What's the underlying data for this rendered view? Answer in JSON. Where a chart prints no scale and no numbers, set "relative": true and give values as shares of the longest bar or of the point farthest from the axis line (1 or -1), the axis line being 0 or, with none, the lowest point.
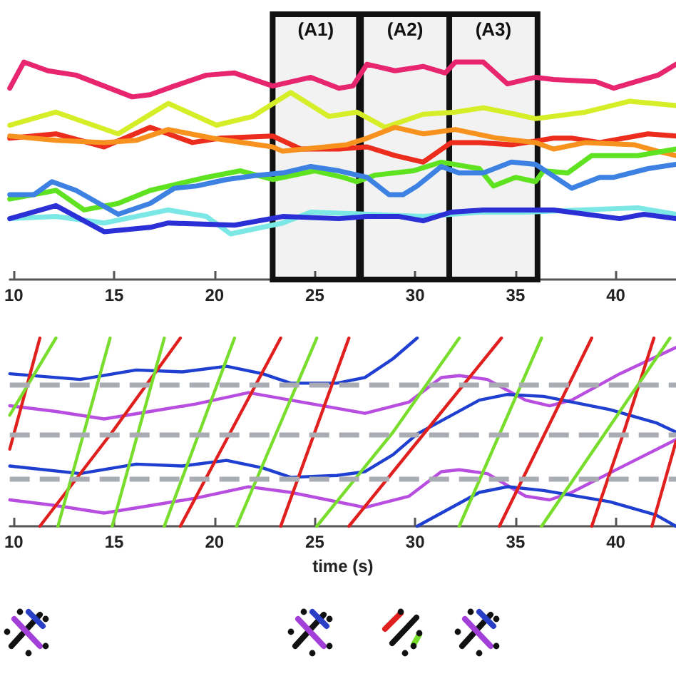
{
  "chart_data": [
    {
      "type": "line",
      "relative": true,
      "xlim": [
        9.8,
        43
      ],
      "xticks": [
        10,
        15,
        20,
        25,
        30,
        35,
        40
      ],
      "tick_labels": "x",
      "grid": false,
      "marker": "none",
      "line_style": "solid",
      "bands": [
        {
          "axis": "x",
          "from": 22.9,
          "to": 27.2,
          "label": "(A1)"
        },
        {
          "axis": "x",
          "from": 27.3,
          "to": 31.7,
          "label": "(A2)"
        },
        {
          "axis": "x",
          "from": 31.7,
          "to": 36.1,
          "label": "(A3)"
        }
      ],
      "series": [
        {
          "color": "#e8266f",
          "x": [
            9.8,
            10.5,
            11.7,
            13.1,
            14.5,
            15.9,
            16.8,
            18.0,
            19.6,
            21.0,
            22.9,
            24.8,
            26.2,
            26.9,
            27.6,
            29.0,
            30.4,
            31.5,
            32.0,
            33.4,
            34.6,
            36.0,
            36.9,
            39.0,
            39.9,
            42.1,
            43.0
          ],
          "values": [
            0.88,
            1.0,
            0.96,
            0.94,
            0.89,
            0.84,
            0.85,
            0.89,
            0.94,
            0.95,
            0.89,
            0.93,
            0.88,
            0.89,
            0.99,
            0.96,
            0.98,
            0.95,
            1.0,
            1.0,
            0.9,
            0.93,
            0.92,
            0.91,
            0.88,
            0.94,
            0.99
          ]
        },
        {
          "color": "#d6ee27",
          "x": [
            9.8,
            12.1,
            15.2,
            17.7,
            20.1,
            21.9,
            23.8,
            25.7,
            27.1,
            28.5,
            30.4,
            32.0,
            33.4,
            35.0,
            36.0,
            38.5,
            40.7,
            43.0
          ],
          "values": [
            0.71,
            0.77,
            0.67,
            0.81,
            0.71,
            0.75,
            0.86,
            0.75,
            0.77,
            0.7,
            0.76,
            0.77,
            0.79,
            0.76,
            0.74,
            0.77,
            0.82,
            0.8
          ]
        },
        {
          "color": "#ec2c1c",
          "x": [
            9.8,
            12.1,
            14.5,
            16.8,
            18.9,
            20.3,
            22.9,
            24.3,
            26.2,
            27.6,
            29.0,
            30.4,
            31.8,
            33.2,
            34.8,
            36.9,
            37.8,
            39.2,
            41.6,
            43.0
          ],
          "values": [
            0.65,
            0.67,
            0.61,
            0.7,
            0.63,
            0.65,
            0.66,
            0.6,
            0.6,
            0.61,
            0.57,
            0.54,
            0.63,
            0.63,
            0.62,
            0.65,
            0.65,
            0.63,
            0.67,
            0.66
          ]
        },
        {
          "color": "#f7921f",
          "x": [
            9.8,
            12.1,
            14.5,
            16.1,
            17.7,
            19.9,
            22.9,
            23.4,
            26.6,
            27.6,
            29.0,
            30.4,
            32.0,
            34.1,
            36.0,
            36.9,
            38.5,
            40.9,
            42.1,
            43.0
          ],
          "values": [
            0.66,
            0.64,
            0.63,
            0.64,
            0.69,
            0.65,
            0.61,
            0.59,
            0.62,
            0.65,
            0.7,
            0.67,
            0.69,
            0.65,
            0.63,
            0.6,
            0.63,
            0.62,
            0.59,
            0.57
          ]
        },
        {
          "color": "#5fe320",
          "x": [
            9.8,
            12.1,
            13.5,
            15.2,
            16.8,
            19.6,
            21.3,
            22.9,
            25.0,
            26.4,
            27.1,
            28.0,
            29.9,
            31.3,
            33.2,
            33.9,
            35.0,
            36.0,
            36.4,
            37.6,
            38.8,
            41.1,
            43.0
          ],
          "values": [
            0.37,
            0.41,
            0.32,
            0.35,
            0.41,
            0.47,
            0.5,
            0.46,
            0.5,
            0.47,
            0.45,
            0.48,
            0.5,
            0.54,
            0.51,
            0.43,
            0.47,
            0.45,
            0.5,
            0.49,
            0.57,
            0.57,
            0.6
          ]
        },
        {
          "color": "#3d82e2",
          "x": [
            9.8,
            11.0,
            11.9,
            13.1,
            15.2,
            16.8,
            18.0,
            19.1,
            20.6,
            22.2,
            23.4,
            24.8,
            26.2,
            27.6,
            28.7,
            29.4,
            30.1,
            31.3,
            32.2,
            33.4,
            34.8,
            36.0,
            37.8,
            39.2,
            39.9,
            41.6,
            43.0
          ],
          "values": [
            0.39,
            0.39,
            0.45,
            0.41,
            0.3,
            0.35,
            0.42,
            0.43,
            0.46,
            0.48,
            0.49,
            0.52,
            0.5,
            0.47,
            0.39,
            0.39,
            0.43,
            0.52,
            0.49,
            0.49,
            0.54,
            0.53,
            0.42,
            0.47,
            0.47,
            0.51,
            0.53
          ]
        },
        {
          "color": "#7be8e6",
          "x": [
            9.8,
            12.1,
            14.5,
            17.7,
            19.6,
            20.8,
            23.4,
            24.8,
            27.6,
            30.4,
            33.2,
            35.5,
            41.1,
            43.0
          ],
          "values": [
            0.28,
            0.29,
            0.26,
            0.32,
            0.29,
            0.21,
            0.26,
            0.31,
            0.3,
            0.29,
            0.31,
            0.31,
            0.33,
            0.3
          ]
        },
        {
          "color": "#2b2fd6",
          "x": [
            9.8,
            12.1,
            14.5,
            16.8,
            17.7,
            21.0,
            23.4,
            26.2,
            27.6,
            29.2,
            30.4,
            31.8,
            33.4,
            36.9,
            40.2,
            41.4,
            43.0
          ],
          "values": [
            0.28,
            0.34,
            0.22,
            0.24,
            0.26,
            0.25,
            0.29,
            0.28,
            0.29,
            0.29,
            0.27,
            0.31,
            0.32,
            0.32,
            0.28,
            0.3,
            0.28
          ]
        }
      ]
    },
    {
      "type": "line",
      "relative": true,
      "xlabel": "time (s)",
      "xlim": [
        9.8,
        43
      ],
      "xticks": [
        10,
        15,
        20,
        25,
        30,
        35,
        40
      ],
      "tick_labels": "x",
      "grid": false,
      "marker": "none",
      "line_style": "solid",
      "ref_lines": [
        {
          "axis": "y",
          "value": 0.75,
          "color": "#a9adb3",
          "line_style": "dashed"
        },
        {
          "axis": "y",
          "value": 0.49,
          "color": "#a9adb3",
          "line_style": "dashed"
        },
        {
          "axis": "y",
          "value": 0.25,
          "color": "#a9adb3",
          "line_style": "dashed"
        }
      ],
      "series": [
        {
          "color": "#b84ee0",
          "x": [
            9.8,
            12.1,
            14.5,
            16.8,
            19.1,
            21.7,
            23.8,
            27.5,
            29.7,
            31.3,
            32.2,
            33.6,
            35.5,
            36.7,
            37.8,
            40.2,
            43.0,
            null,
            9.8,
            12.1,
            14.5,
            16.8,
            19.1,
            21.7,
            23.8,
            27.5,
            29.7,
            31.3,
            32.2,
            33.6,
            35.5,
            36.7,
            37.8,
            40.2,
            43.0
          ],
          "values": [
            0.64,
            0.61,
            0.57,
            0.61,
            0.65,
            0.71,
            0.67,
            0.6,
            0.66,
            0.79,
            0.8,
            0.78,
            0.67,
            0.64,
            0.67,
            0.81,
            0.95,
            null,
            0.14,
            0.11,
            0.07,
            0.11,
            0.15,
            0.21,
            0.18,
            0.1,
            0.16,
            0.29,
            0.3,
            0.28,
            0.16,
            0.14,
            0.18,
            0.31,
            0.46
          ]
        },
        {
          "color": "#1f3fd0",
          "x": [
            9.8,
            13.3,
            16.1,
            18.4,
            20.6,
            22.4,
            23.8,
            26.1,
            27.5,
            28.9,
            30.1,
            null,
            30.1,
            33.2,
            34.6,
            36.4,
            39.7,
            42.0,
            43.0,
            null,
            9.8,
            13.3,
            16.1,
            18.4,
            20.6,
            22.4,
            23.8,
            26.1,
            27.5,
            28.9,
            30.1,
            33.2,
            34.6,
            36.4,
            39.7,
            42.0,
            43.0
          ],
          "values": [
            0.81,
            0.78,
            0.83,
            0.82,
            0.85,
            0.81,
            0.76,
            0.76,
            0.79,
            0.89,
            1.0,
            null,
            0,
            0.18,
            0.21,
            0.19,
            0.13,
            0.06,
            0,
            null,
            0.32,
            0.28,
            0.33,
            0.32,
            0.35,
            0.31,
            0.26,
            0.27,
            0.29,
            0.38,
            0.49,
            0.67,
            0.7,
            0.69,
            0.62,
            0.55,
            0.5
          ]
        },
        {
          "color": "#e0201e",
          "x": [
            9.8,
            11.3,
            null,
            11.3,
            14.9,
            18.3,
            null,
            18.3,
            20.8,
            23.3,
            null,
            23.3,
            25.0,
            26.7,
            null,
            26.7,
            30.5,
            34.3,
            null,
            34.2,
            36.5,
            38.8,
            null,
            38.8,
            40.4,
            41.9,
            null,
            41.8,
            43.0
          ],
          "values": [
            0.41,
            1.0,
            null,
            0,
            0.5,
            1.0,
            null,
            0,
            0.5,
            1.0,
            null,
            0,
            0.5,
            1.0,
            null,
            0,
            0.5,
            1.0,
            null,
            0,
            0.5,
            1.0,
            null,
            0,
            0.5,
            1.0,
            null,
            0,
            0.45
          ]
        },
        {
          "color": "#78dd2c",
          "x": [
            9.8,
            12.1,
            null,
            12.2,
            14.8,
            null,
            14.9,
            17.5,
            null,
            17.5,
            21.0,
            null,
            21.1,
            25.1,
            null,
            25.1,
            28.9,
            32.2,
            null,
            32.2,
            36.3,
            null,
            36.3,
            42.7
          ],
          "values": [
            0.59,
            1.0,
            null,
            0,
            1.0,
            null,
            0,
            1.0,
            null,
            0,
            1.0,
            null,
            0,
            1.0,
            null,
            0,
            0.5,
            1.0,
            null,
            0,
            1.0,
            null,
            0,
            1.0
          ]
        }
      ]
    }
  ]
}
